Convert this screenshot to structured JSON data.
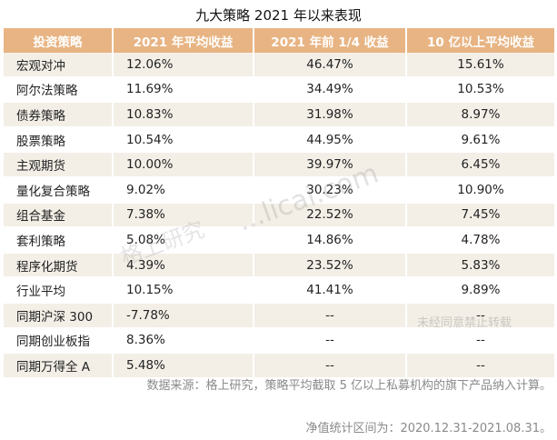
{
  "title": "九大策略 2021 年以来表现",
  "headers": [
    "投资策略",
    "2021 年平均收益",
    "2021 年前 1/4 收益",
    "10 亿以上平均收益"
  ],
  "rows": [
    [
      "宏观对冲",
      "12.06%",
      "46.47%",
      "15.61%"
    ],
    [
      "阿尔法策略",
      "11.69%",
      "34.49%",
      "10.53%"
    ],
    [
      "债券策略",
      "10.83%",
      "31.98%",
      "8.97%"
    ],
    [
      "股票策略",
      "10.54%",
      "44.95%",
      "9.61%"
    ],
    [
      "主观期货",
      "10.00%",
      "39.97%",
      "6.45%"
    ],
    [
      "量化复合策略",
      "9.02%",
      "30.23%",
      "10.90%"
    ],
    [
      "组合基金",
      "7.38%",
      "22.52%",
      "7.45%"
    ],
    [
      "套利策略",
      "5.08%",
      "14.86%",
      "4.78%"
    ],
    [
      "程序化期货",
      "4.39%",
      "23.52%",
      "5.83%"
    ],
    [
      "行业平均",
      "10.15%",
      "41.41%",
      "9.89%"
    ],
    [
      "同期沪深 300",
      "-7.78%",
      "--",
      "--"
    ],
    [
      "同期创业板指",
      "8.36%",
      "--",
      "--"
    ],
    [
      "同期万得全 A",
      "5.48%",
      "--",
      "--"
    ]
  ],
  "watermark": {
    "site": "...licai.com",
    "brand": "格上研究",
    "notice": "未经同意禁止转载"
  },
  "footnotes": {
    "source": "数据来源：格上研究，策略平均截取 5 亿以上私募机构的旗下产品纳入计算。",
    "period": "净值统计区间为：2020.12.31-2021.08.31。"
  },
  "colors": {
    "header_bg": "#e8b483",
    "stripe_bg": "#f3efe7"
  }
}
